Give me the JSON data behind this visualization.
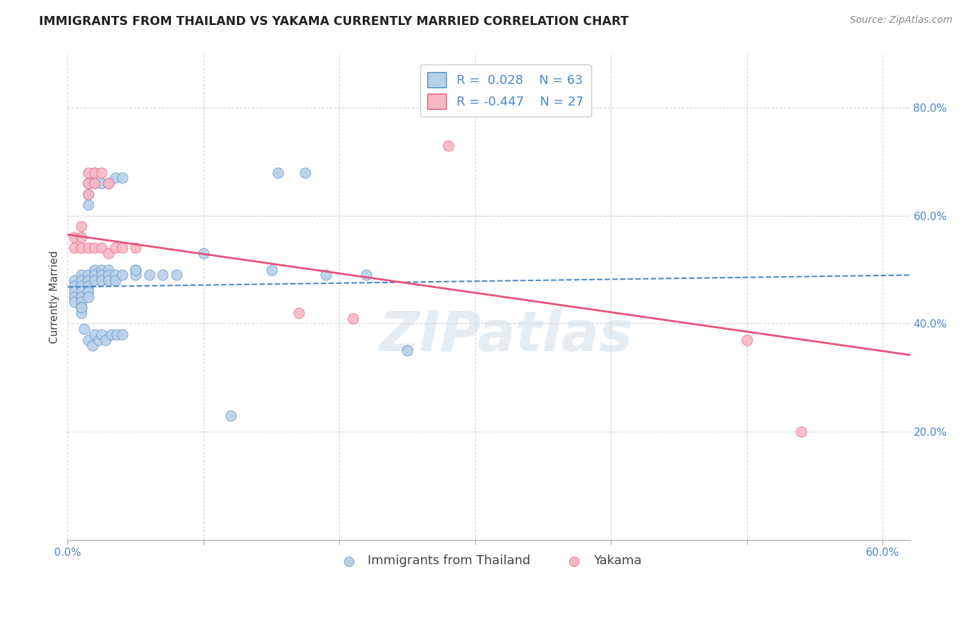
{
  "title": "IMMIGRANTS FROM THAILAND VS YAKAMA CURRENTLY MARRIED CORRELATION CHART",
  "source": "Source: ZipAtlas.com",
  "ylabel": "Currently Married",
  "xlim": [
    0.0,
    0.62
  ],
  "ylim": [
    0.0,
    0.9
  ],
  "xtick_labels": [
    "0.0%",
    "",
    "",
    "",
    "",
    "",
    "60.0%"
  ],
  "xtick_vals": [
    0.0,
    0.1,
    0.2,
    0.3,
    0.4,
    0.5,
    0.6
  ],
  "ytick_labels": [
    "20.0%",
    "40.0%",
    "60.0%",
    "80.0%"
  ],
  "ytick_vals": [
    0.2,
    0.4,
    0.6,
    0.8
  ],
  "legend_labels": [
    "Immigrants from Thailand",
    "Yakama"
  ],
  "R_thailand": 0.028,
  "N_thailand": 63,
  "R_yakama": -0.447,
  "N_yakama": 27,
  "watermark": "ZIPatlas",
  "blue_scatter_x": [
    0.005,
    0.005,
    0.005,
    0.005,
    0.005,
    0.01,
    0.01,
    0.01,
    0.01,
    0.01,
    0.01,
    0.01,
    0.01,
    0.015,
    0.015,
    0.015,
    0.015,
    0.015,
    0.015,
    0.015,
    0.015,
    0.02,
    0.02,
    0.02,
    0.02,
    0.02,
    0.025,
    0.025,
    0.025,
    0.025,
    0.03,
    0.03,
    0.03,
    0.03,
    0.035,
    0.035,
    0.035,
    0.04,
    0.04,
    0.05,
    0.05,
    0.06,
    0.07,
    0.08,
    0.1,
    0.12,
    0.15,
    0.155,
    0.175,
    0.19,
    0.22,
    0.25,
    0.01,
    0.012,
    0.015,
    0.018,
    0.02,
    0.023,
    0.025,
    0.028,
    0.032,
    0.036,
    0.04,
    0.05
  ],
  "blue_scatter_y": [
    0.48,
    0.47,
    0.46,
    0.45,
    0.44,
    0.49,
    0.48,
    0.47,
    0.46,
    0.45,
    0.44,
    0.43,
    0.42,
    0.66,
    0.64,
    0.62,
    0.49,
    0.48,
    0.47,
    0.46,
    0.45,
    0.68,
    0.66,
    0.5,
    0.49,
    0.48,
    0.66,
    0.5,
    0.49,
    0.48,
    0.66,
    0.5,
    0.49,
    0.48,
    0.67,
    0.49,
    0.48,
    0.67,
    0.49,
    0.5,
    0.49,
    0.49,
    0.49,
    0.49,
    0.53,
    0.23,
    0.5,
    0.68,
    0.68,
    0.49,
    0.49,
    0.35,
    0.43,
    0.39,
    0.37,
    0.36,
    0.38,
    0.37,
    0.38,
    0.37,
    0.38,
    0.38,
    0.38,
    0.5
  ],
  "pink_scatter_x": [
    0.005,
    0.005,
    0.01,
    0.01,
    0.01,
    0.015,
    0.015,
    0.015,
    0.015,
    0.02,
    0.02,
    0.02,
    0.025,
    0.025,
    0.03,
    0.03,
    0.035,
    0.04,
    0.05,
    0.17,
    0.21,
    0.28,
    0.5,
    0.54
  ],
  "pink_scatter_y": [
    0.56,
    0.54,
    0.58,
    0.56,
    0.54,
    0.68,
    0.66,
    0.64,
    0.54,
    0.68,
    0.66,
    0.54,
    0.68,
    0.54,
    0.66,
    0.53,
    0.54,
    0.54,
    0.54,
    0.42,
    0.41,
    0.73,
    0.37,
    0.2
  ],
  "blue_line_x": [
    0.0,
    0.62
  ],
  "blue_line_y_start": 0.468,
  "blue_line_y_end": 0.49,
  "pink_line_x": [
    0.0,
    0.62
  ],
  "pink_line_y_start": 0.565,
  "pink_line_y_end": 0.342,
  "dot_color_blue": "#b8d0e8",
  "dot_color_pink": "#f5b8c4",
  "line_color_blue": "#4a86c8",
  "line_color_pink": "#e8507a",
  "background_color": "#ffffff",
  "grid_color": "#c8c8d0",
  "title_fontsize": 12.5,
  "axis_label_fontsize": 11,
  "tick_fontsize": 11,
  "legend_fontsize": 13,
  "source_fontsize": 10
}
